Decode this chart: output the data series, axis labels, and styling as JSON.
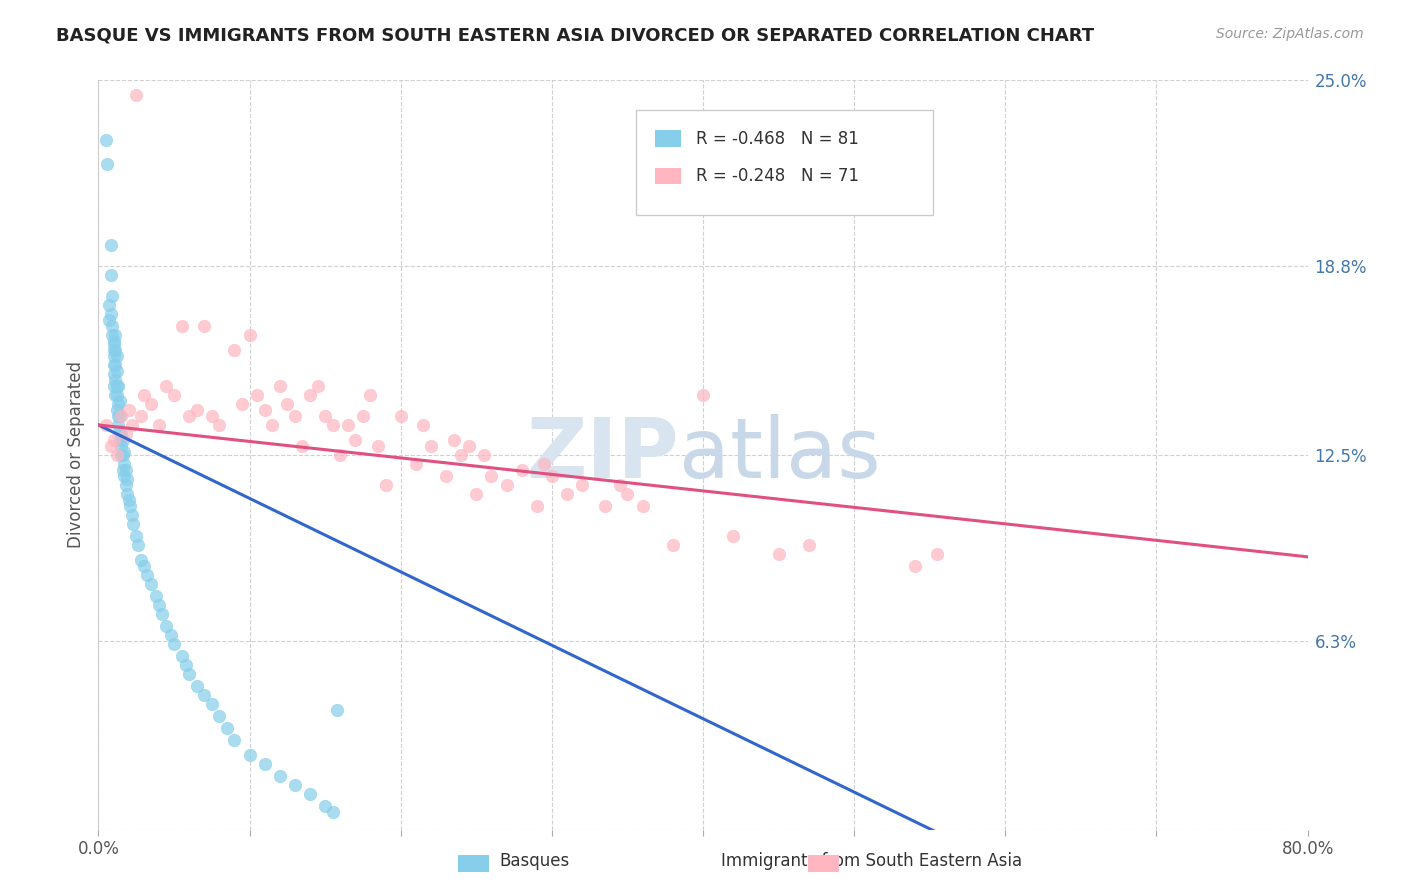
{
  "title": "BASQUE VS IMMIGRANTS FROM SOUTH EASTERN ASIA DIVORCED OR SEPARATED CORRELATION CHART",
  "source_text": "Source: ZipAtlas.com",
  "ylabel": "Divorced or Separated",
  "r1": -0.468,
  "n1": 81,
  "r2": -0.248,
  "n2": 71,
  "color1": "#87CEEB",
  "color2": "#FFB6C1",
  "line_color1": "#3366CC",
  "line_color2": "#E05080",
  "xlim": [
    0.0,
    0.8
  ],
  "ylim": [
    0.0,
    0.25
  ],
  "background_color": "#ffffff",
  "grid_color": "#d0d0d0",
  "legend_label1": "Basques",
  "legend_label2": "Immigrants from South Eastern Asia",
  "watermark_zip": "ZIP",
  "watermark_atlas": "atlas",
  "basques_x": [
    0.005,
    0.006,
    0.007,
    0.007,
    0.008,
    0.008,
    0.008,
    0.009,
    0.009,
    0.009,
    0.01,
    0.01,
    0.01,
    0.01,
    0.01,
    0.01,
    0.01,
    0.011,
    0.011,
    0.011,
    0.011,
    0.011,
    0.012,
    0.012,
    0.012,
    0.012,
    0.012,
    0.013,
    0.013,
    0.013,
    0.013,
    0.014,
    0.014,
    0.014,
    0.014,
    0.015,
    0.015,
    0.015,
    0.016,
    0.016,
    0.016,
    0.017,
    0.017,
    0.017,
    0.018,
    0.018,
    0.019,
    0.019,
    0.02,
    0.021,
    0.022,
    0.023,
    0.025,
    0.026,
    0.028,
    0.03,
    0.032,
    0.035,
    0.038,
    0.04,
    0.042,
    0.045,
    0.048,
    0.05,
    0.055,
    0.058,
    0.06,
    0.065,
    0.07,
    0.075,
    0.08,
    0.085,
    0.09,
    0.1,
    0.11,
    0.12,
    0.13,
    0.14,
    0.15,
    0.155,
    0.158
  ],
  "basques_y": [
    0.23,
    0.222,
    0.17,
    0.175,
    0.185,
    0.195,
    0.172,
    0.165,
    0.168,
    0.178,
    0.155,
    0.16,
    0.163,
    0.148,
    0.152,
    0.158,
    0.162,
    0.145,
    0.15,
    0.155,
    0.16,
    0.165,
    0.14,
    0.145,
    0.148,
    0.153,
    0.158,
    0.135,
    0.138,
    0.142,
    0.148,
    0.13,
    0.133,
    0.138,
    0.143,
    0.125,
    0.128,
    0.132,
    0.12,
    0.125,
    0.13,
    0.118,
    0.122,
    0.126,
    0.115,
    0.12,
    0.112,
    0.117,
    0.11,
    0.108,
    0.105,
    0.102,
    0.098,
    0.095,
    0.09,
    0.088,
    0.085,
    0.082,
    0.078,
    0.075,
    0.072,
    0.068,
    0.065,
    0.062,
    0.058,
    0.055,
    0.052,
    0.048,
    0.045,
    0.042,
    0.038,
    0.034,
    0.03,
    0.025,
    0.022,
    0.018,
    0.015,
    0.012,
    0.008,
    0.006,
    0.04
  ],
  "immigrants_x": [
    0.005,
    0.008,
    0.01,
    0.012,
    0.015,
    0.018,
    0.02,
    0.022,
    0.025,
    0.028,
    0.03,
    0.035,
    0.04,
    0.045,
    0.05,
    0.055,
    0.06,
    0.065,
    0.07,
    0.075,
    0.08,
    0.09,
    0.095,
    0.1,
    0.105,
    0.11,
    0.115,
    0.12,
    0.125,
    0.13,
    0.135,
    0.14,
    0.145,
    0.15,
    0.155,
    0.16,
    0.165,
    0.17,
    0.175,
    0.18,
    0.185,
    0.19,
    0.2,
    0.21,
    0.215,
    0.22,
    0.23,
    0.235,
    0.24,
    0.245,
    0.25,
    0.255,
    0.26,
    0.27,
    0.28,
    0.29,
    0.295,
    0.3,
    0.31,
    0.32,
    0.335,
    0.345,
    0.35,
    0.36,
    0.38,
    0.4,
    0.42,
    0.45,
    0.47,
    0.54,
    0.555
  ],
  "immigrants_y": [
    0.135,
    0.128,
    0.13,
    0.125,
    0.138,
    0.132,
    0.14,
    0.135,
    0.245,
    0.138,
    0.145,
    0.142,
    0.135,
    0.148,
    0.145,
    0.168,
    0.138,
    0.14,
    0.168,
    0.138,
    0.135,
    0.16,
    0.142,
    0.165,
    0.145,
    0.14,
    0.135,
    0.148,
    0.142,
    0.138,
    0.128,
    0.145,
    0.148,
    0.138,
    0.135,
    0.125,
    0.135,
    0.13,
    0.138,
    0.145,
    0.128,
    0.115,
    0.138,
    0.122,
    0.135,
    0.128,
    0.118,
    0.13,
    0.125,
    0.128,
    0.112,
    0.125,
    0.118,
    0.115,
    0.12,
    0.108,
    0.122,
    0.118,
    0.112,
    0.115,
    0.108,
    0.115,
    0.112,
    0.108,
    0.095,
    0.145,
    0.098,
    0.092,
    0.095,
    0.088,
    0.092
  ]
}
